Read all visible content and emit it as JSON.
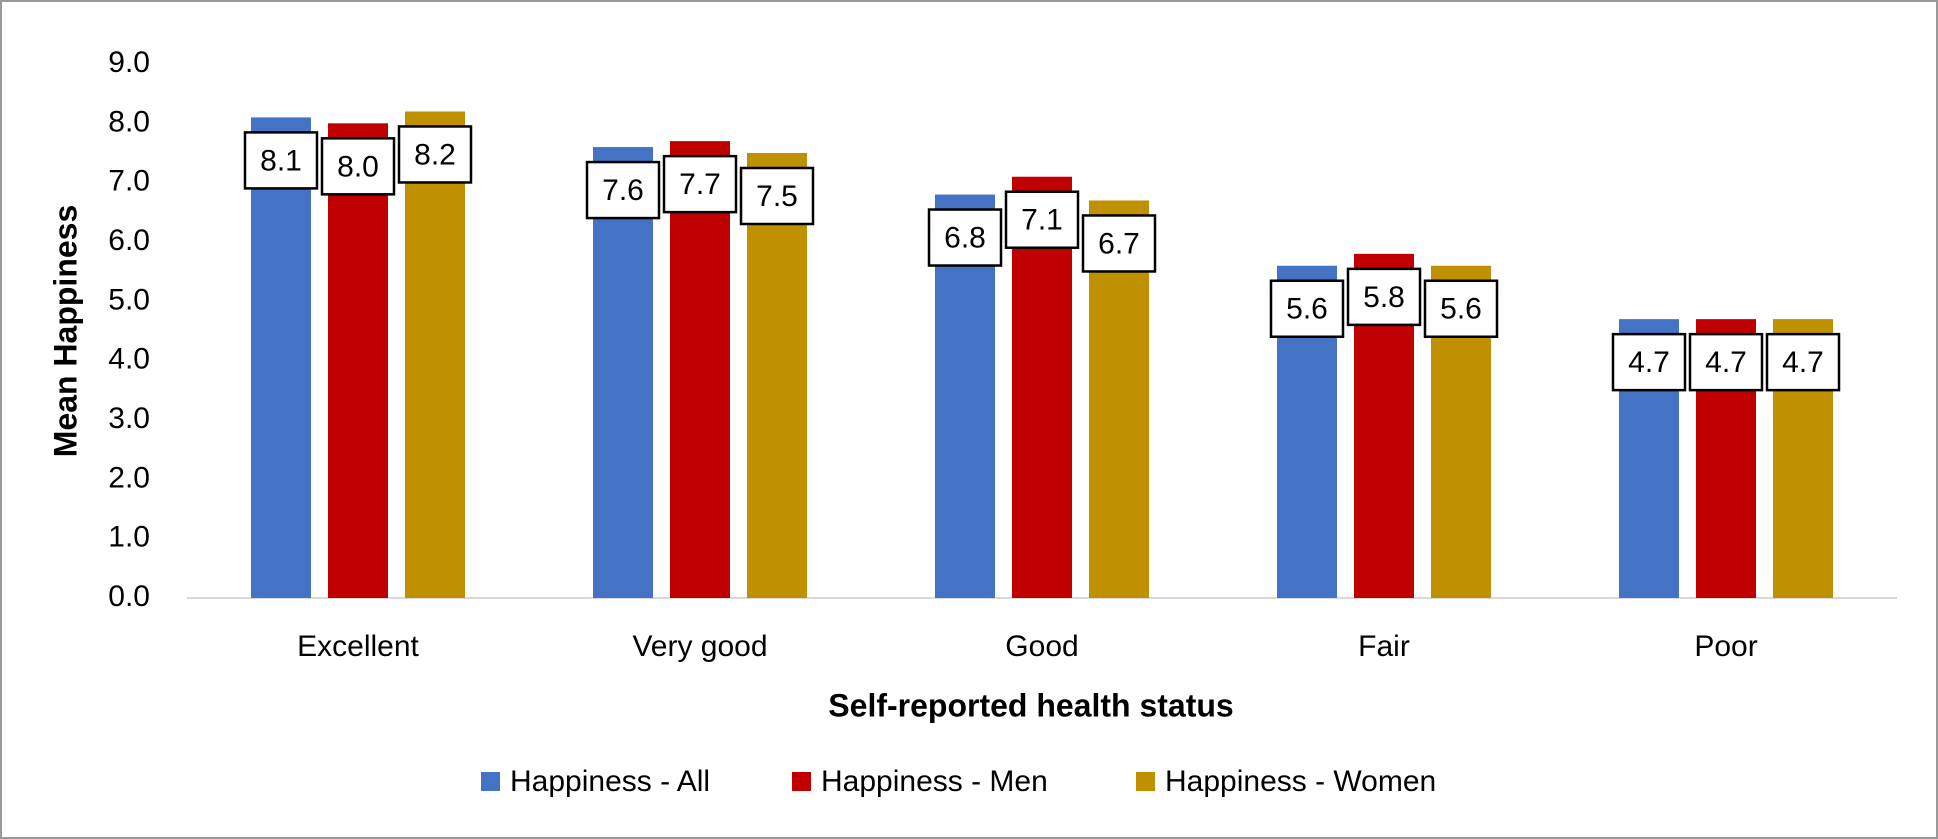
{
  "chart_data": {
    "type": "bar",
    "x_label": "Self-reported health status",
    "y_label": "Mean Happiness",
    "categories": [
      "Excellent",
      "Very good",
      "Good",
      "Fair",
      "Poor"
    ],
    "series": [
      {
        "name": "Happiness - All",
        "color": "#4472c4",
        "values": [
          8.1,
          7.6,
          6.8,
          5.6,
          4.7
        ],
        "value_labels": [
          "8.1",
          "7.6",
          "6.8",
          "5.6",
          "4.7"
        ]
      },
      {
        "name": "Happiness - Men",
        "color": "#c00000",
        "values": [
          8.0,
          7.7,
          7.1,
          5.8,
          4.7
        ],
        "value_labels": [
          "8.0",
          "7.7",
          "7.1",
          "5.8",
          "4.7"
        ]
      },
      {
        "name": "Happiness - Women",
        "color": "#bf9000",
        "values": [
          8.2,
          7.5,
          6.7,
          5.6,
          4.7
        ],
        "value_labels": [
          "8.2",
          "7.5",
          "6.7",
          "5.6",
          "4.7"
        ]
      }
    ],
    "ylim": [
      0,
      9
    ],
    "yticks": [
      {
        "value": 0,
        "label": "0.0"
      },
      {
        "value": 1,
        "label": "1.0"
      },
      {
        "value": 2,
        "label": "2.0"
      },
      {
        "value": 3,
        "label": "3.0"
      },
      {
        "value": 4,
        "label": "4.0"
      },
      {
        "value": 5,
        "label": "5.0"
      },
      {
        "value": 6,
        "label": "6.0"
      },
      {
        "value": 7,
        "label": "7.0"
      },
      {
        "value": 8,
        "label": "8.0"
      },
      {
        "value": 9,
        "label": "9.0"
      }
    ],
    "grid": false,
    "legend": "bottom"
  }
}
